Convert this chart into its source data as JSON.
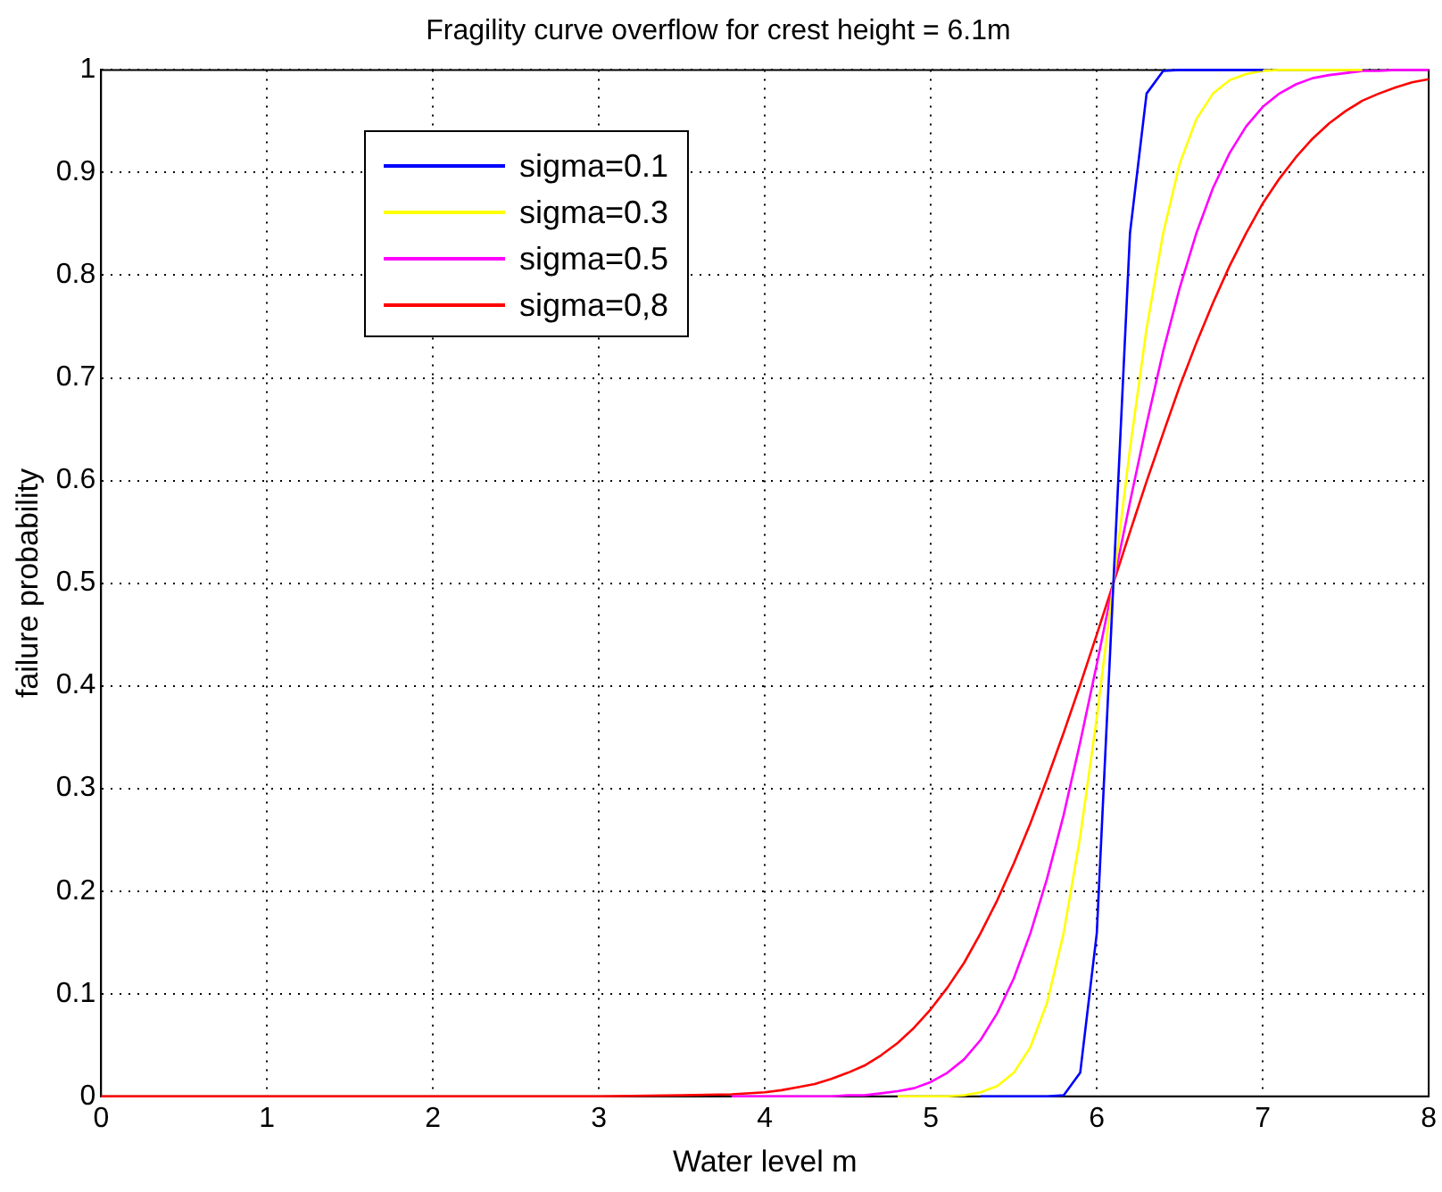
{
  "chart_data": {
    "type": "line",
    "title": "Fragility curve overflow for crest height = 6.1m",
    "xlabel": "Water level m",
    "ylabel": "failure probability",
    "series": [
      {
        "name": "sigma=0.1",
        "color": "#0000ff",
        "x": [
          5.3,
          5.4,
          5.5,
          5.6,
          5.7,
          5.8,
          5.9,
          6.0,
          6.1,
          6.2,
          6.3,
          6.4,
          6.5,
          6.6,
          6.7,
          6.8,
          6.9,
          7.0
        ],
        "values": [
          0,
          0,
          0,
          0,
          0,
          0.001,
          0.023,
          0.159,
          0.5,
          0.841,
          0.977,
          0.999,
          1,
          1,
          1,
          1,
          1,
          1
        ]
      },
      {
        "name": "sigma=0.3",
        "color": "#ffff00",
        "x": [
          4.8,
          4.9,
          5.0,
          5.1,
          5.2,
          5.3,
          5.4,
          5.5,
          5.6,
          5.7,
          5.8,
          5.9,
          6.0,
          6.1,
          6.2,
          6.3,
          6.4,
          6.5,
          6.6,
          6.7,
          6.8,
          6.9,
          7.0,
          7.1,
          7.2,
          7.3,
          7.4,
          7.5,
          7.6
        ],
        "values": [
          0,
          0,
          0,
          0,
          0.001,
          0.004,
          0.01,
          0.023,
          0.048,
          0.091,
          0.159,
          0.253,
          0.369,
          0.5,
          0.631,
          0.748,
          0.841,
          0.909,
          0.952,
          0.977,
          0.99,
          0.996,
          0.999,
          1,
          1,
          1,
          1,
          1,
          1
        ]
      },
      {
        "name": "sigma=0.5",
        "color": "#ff00ff",
        "x": [
          3.8,
          4.0,
          4.1,
          4.2,
          4.3,
          4.4,
          4.5,
          4.6,
          4.7,
          4.8,
          4.9,
          5.0,
          5.1,
          5.2,
          5.3,
          5.4,
          5.5,
          5.6,
          5.7,
          5.8,
          5.9,
          6.0,
          6.1,
          6.2,
          6.3,
          6.4,
          6.5,
          6.6,
          6.7,
          6.8,
          6.9,
          7.0,
          7.1,
          7.2,
          7.3,
          7.4,
          7.5,
          7.6,
          7.7,
          7.8,
          7.9,
          8.0
        ],
        "values": [
          0,
          0,
          0,
          0,
          0,
          0,
          0.001,
          0.001,
          0.003,
          0.005,
          0.008,
          0.014,
          0.023,
          0.036,
          0.055,
          0.081,
          0.115,
          0.159,
          0.212,
          0.274,
          0.345,
          0.421,
          0.5,
          0.579,
          0.655,
          0.726,
          0.788,
          0.841,
          0.885,
          0.919,
          0.945,
          0.964,
          0.977,
          0.986,
          0.992,
          0.995,
          0.997,
          0.999,
          0.999,
          1,
          1,
          1
        ]
      },
      {
        "name": "sigma=0,8",
        "color": "#ff0000",
        "x": [
          0,
          1,
          2,
          3,
          3.5,
          3.8,
          4.0,
          4.1,
          4.2,
          4.3,
          4.4,
          4.5,
          4.6,
          4.7,
          4.8,
          4.9,
          5.0,
          5.1,
          5.2,
          5.3,
          5.4,
          5.5,
          5.6,
          5.7,
          5.8,
          5.9,
          6.0,
          6.1,
          6.2,
          6.3,
          6.4,
          6.5,
          6.6,
          6.7,
          6.8,
          6.9,
          7.0,
          7.1,
          7.2,
          7.3,
          7.4,
          7.5,
          7.6,
          7.7,
          7.8,
          7.9,
          8.0
        ],
        "values": [
          0,
          0,
          0,
          0,
          0.001,
          0.002,
          0.004,
          0.006,
          0.009,
          0.012,
          0.017,
          0.023,
          0.03,
          0.04,
          0.052,
          0.067,
          0.085,
          0.106,
          0.13,
          0.159,
          0.191,
          0.227,
          0.266,
          0.309,
          0.354,
          0.401,
          0.45,
          0.5,
          0.55,
          0.599,
          0.646,
          0.692,
          0.734,
          0.773,
          0.809,
          0.841,
          0.87,
          0.894,
          0.915,
          0.933,
          0.948,
          0.96,
          0.97,
          0.977,
          0.983,
          0.988,
          0.991
        ]
      }
    ],
    "xlim": [
      0,
      8
    ],
    "xticks": [
      0,
      1,
      2,
      3,
      4,
      5,
      6,
      7,
      8
    ],
    "ylim": [
      0,
      1
    ],
    "yticks": [
      0,
      0.1,
      0.2,
      0.3,
      0.4,
      0.5,
      0.6,
      0.7,
      0.8,
      0.9,
      1
    ],
    "grid": true,
    "legend": "top left",
    "marker": "none",
    "line_style": "solid"
  }
}
